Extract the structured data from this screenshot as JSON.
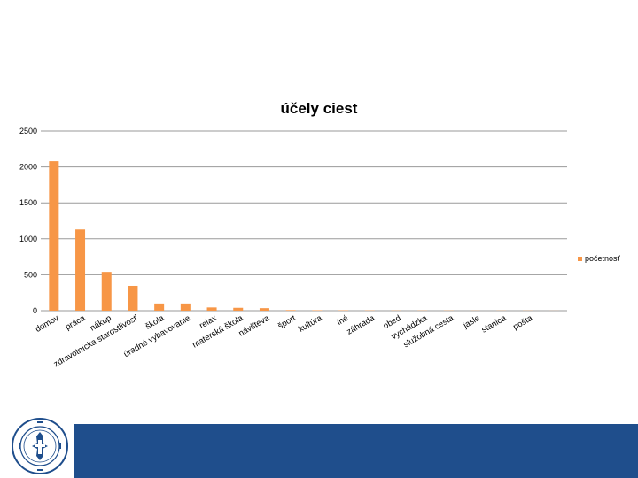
{
  "chart_data": {
    "type": "bar",
    "title": "účely ciest",
    "ylim": [
      0,
      2500
    ],
    "yticks": [
      0,
      500,
      1000,
      1500,
      2000,
      2500
    ],
    "grid": true,
    "legend_position": "right",
    "series": [
      {
        "name": "početnosť",
        "color": "#f79646",
        "values": [
          2080,
          1130,
          540,
          345,
          100,
          100,
          45,
          40,
          35,
          8,
          6,
          5,
          4,
          3,
          3,
          3,
          2,
          2,
          2,
          1
        ]
      }
    ],
    "categories": [
      "domov",
      "práca",
      "nákup",
      "zdravotnícka starostlivosť",
      "škola",
      "úradné vybavovanie",
      "relax",
      "materská škola",
      "návšteva",
      "šport",
      "kultúra",
      "iné",
      "záhrada",
      "obed",
      "vychádzka",
      "služobná cesta",
      "jasle",
      "stanica",
      "pošta",
      ""
    ]
  },
  "logo": {
    "name": "university-seal",
    "text": "UNIVERSITAS ZILINIENSIS"
  },
  "colors": {
    "bar": "#f79646",
    "footer": "#1f4e8c",
    "grid": "#9a9a9a"
  }
}
